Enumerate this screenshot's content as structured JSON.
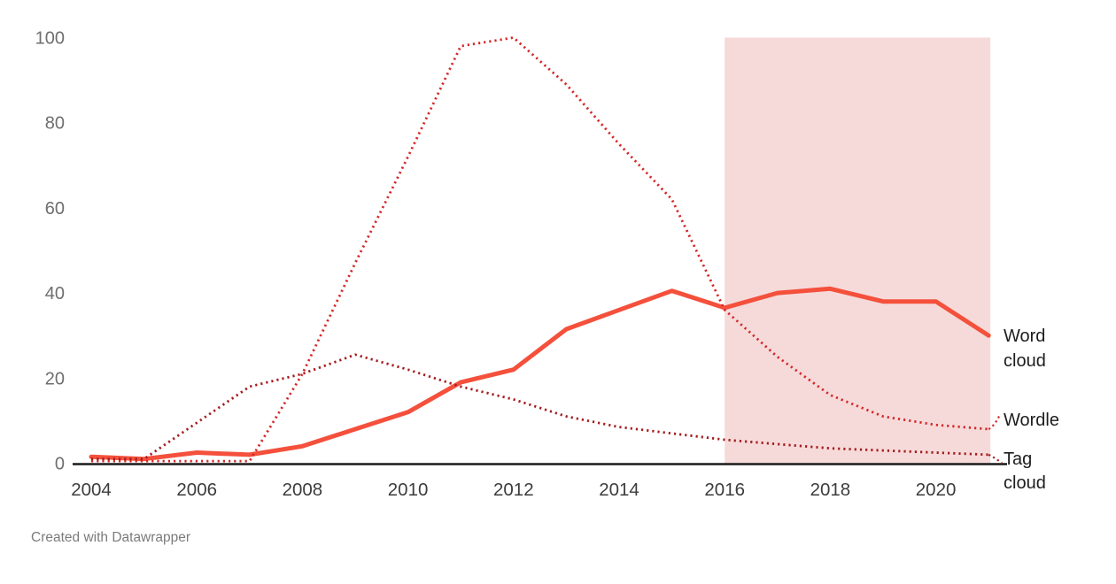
{
  "footer": {
    "credit": "Created with Datawrapper"
  },
  "colors": {
    "word_cloud": "#f4503c",
    "wordle": "#d42828",
    "tag_cloud": "#a51c1e",
    "highlight": "#f6dada",
    "axis": "#1a1a1a"
  },
  "chart_data": {
    "type": "line",
    "x": [
      2004,
      2005,
      2006,
      2007,
      2008,
      2009,
      2010,
      2011,
      2012,
      2013,
      2014,
      2015,
      2016,
      2017,
      2018,
      2019,
      2020,
      2021
    ],
    "series": [
      {
        "name": "Word cloud",
        "style": "solid",
        "color": "#f4503c",
        "values": [
          1.5,
          1,
          2.5,
          2,
          4,
          8,
          12,
          19,
          22,
          31.5,
          36,
          40.5,
          36.5,
          40,
          41,
          38,
          38,
          30
        ]
      },
      {
        "name": "Wordle",
        "style": "dotted",
        "color": "#d42828",
        "values": [
          0.5,
          0.5,
          0.5,
          0.5,
          21,
          47,
          72,
          98,
          100,
          89,
          75,
          62,
          36,
          25,
          16,
          11,
          9,
          8
        ]
      },
      {
        "name": "Tag cloud",
        "style": "dotted",
        "color": "#a51c1e",
        "values": [
          1,
          1,
          9.5,
          18,
          21,
          25.5,
          22,
          18,
          15,
          11,
          8.5,
          7,
          5.5,
          4.5,
          3.5,
          3,
          2.5,
          2
        ]
      }
    ],
    "title": "",
    "xlabel": "",
    "ylabel": "",
    "ylim": [
      0,
      100
    ],
    "y_ticks": [
      0,
      20,
      40,
      60,
      80,
      100
    ],
    "x_ticks": [
      2004,
      2006,
      2008,
      2010,
      2012,
      2014,
      2016,
      2018,
      2020
    ],
    "grid": false,
    "legend_position": "direct-labels-right",
    "highlight_region": {
      "from": 2016,
      "to": 2021,
      "color": "#f6dada"
    }
  }
}
